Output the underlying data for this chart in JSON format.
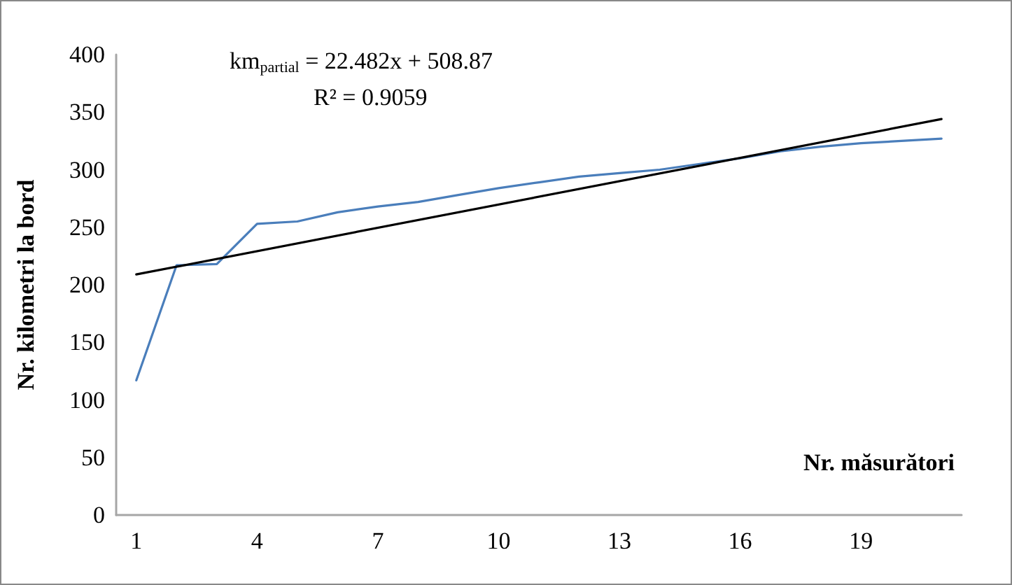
{
  "chart_data": {
    "type": "line",
    "xlabel": "Nr. măsurători",
    "ylabel": "Nr. kilometri la bord",
    "annotations": [
      "km$_{partial}$ = 22.482x + 508.87",
      "R² = 0.9059"
    ],
    "x": [
      1,
      2,
      3,
      4,
      5,
      6,
      7,
      8,
      9,
      10,
      11,
      12,
      13,
      14,
      15,
      16,
      17,
      18,
      19,
      20,
      21
    ],
    "series": [
      {
        "color": "#4a7ebb",
        "values": [
          117,
          217,
          218,
          253,
          255,
          263,
          268,
          272,
          278,
          284,
          289,
          294,
          297,
          300,
          305,
          310,
          316,
          320,
          323,
          325,
          327
        ]
      },
      {
        "type": "line",
        "color": "#000000",
        "x": [
          1,
          21
        ],
        "values": [
          209,
          344
        ]
      }
    ],
    "xlim": [
      0.5,
      21.5
    ],
    "xticks": [
      1,
      4,
      7,
      10,
      13,
      16,
      19
    ],
    "ylim": [
      0,
      400
    ],
    "yticks": [
      0,
      50,
      100,
      150,
      200,
      250,
      300,
      350,
      400
    ],
    "marker": "none",
    "line_style": "solid"
  }
}
